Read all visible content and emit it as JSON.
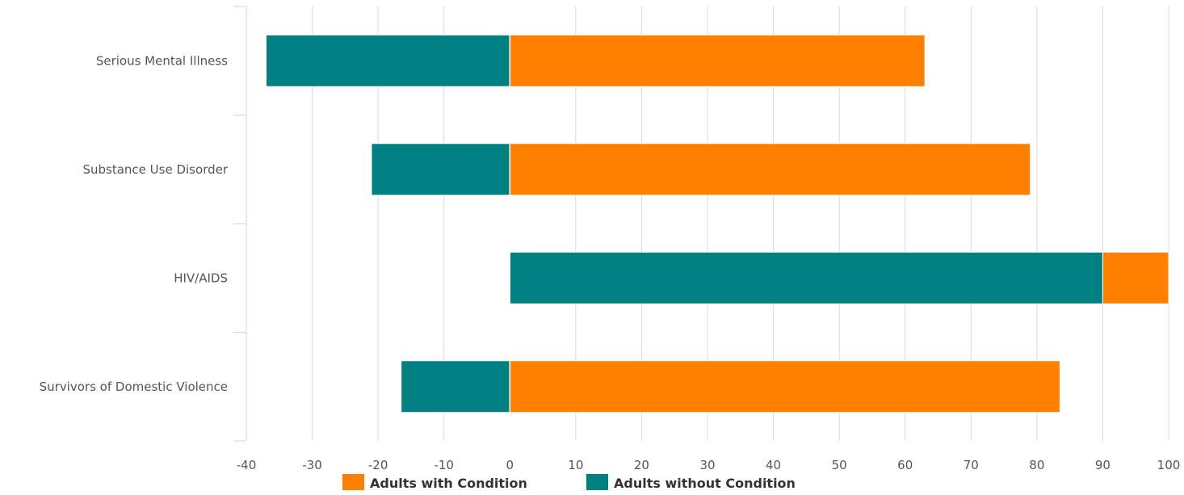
{
  "chart_data": {
    "type": "bar",
    "orientation": "horizontal",
    "stacked": true,
    "title": "",
    "xlabel": "",
    "ylabel": "",
    "categories": [
      "Serious Mental Illness",
      "Substance Use Disorder",
      "HIV/AIDS",
      "Survivors of Domestic Violence"
    ],
    "xlim": [
      -40,
      100
    ],
    "x_ticks": [
      "-40",
      "-30",
      "-20",
      "-10",
      "0",
      "10",
      "20",
      "30",
      "40",
      "50",
      "60",
      "70",
      "80",
      "90",
      "100"
    ],
    "series": [
      {
        "name": "Adults with Condition",
        "color": "#ff8000",
        "values": [
          63,
          79,
          10,
          83.5
        ]
      },
      {
        "name": "Adults without Condition",
        "color": "#008080",
        "values": [
          -37,
          -21,
          90,
          -16.5
        ]
      }
    ],
    "grid": true,
    "legend": "bottom-center"
  }
}
